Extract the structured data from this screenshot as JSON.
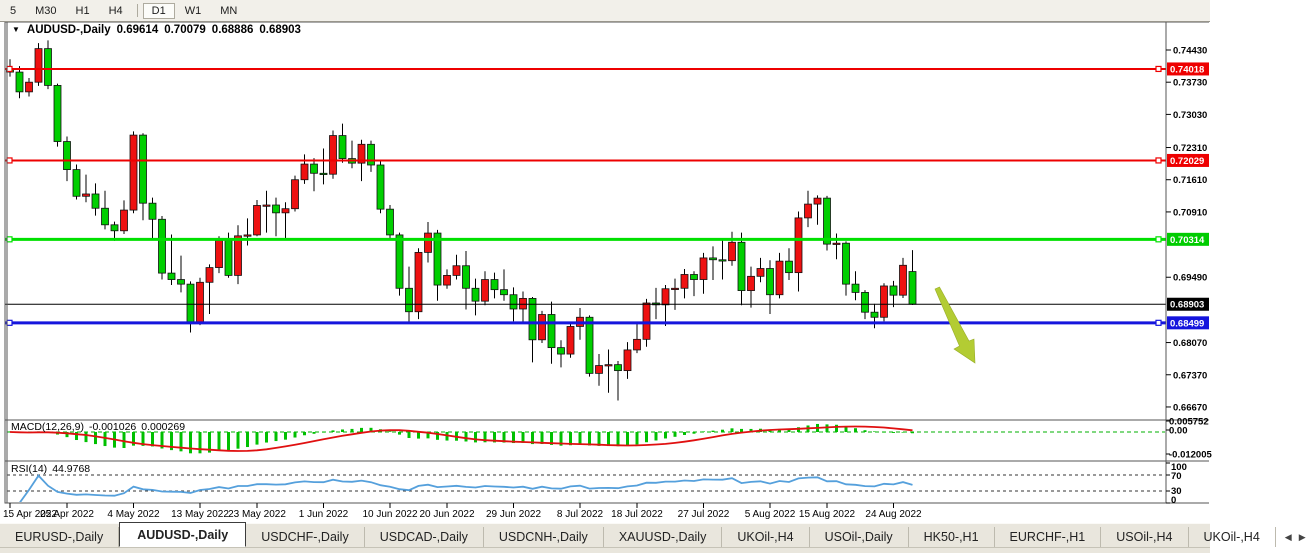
{
  "app": {
    "toolbar": {
      "timeframe_groups": [
        {
          "items": [
            {
              "label": "5",
              "active": false
            },
            {
              "label": "M30",
              "active": false
            },
            {
              "label": "H1",
              "active": false
            },
            {
              "label": "H4",
              "active": false
            }
          ]
        },
        {
          "items": [
            {
              "label": "D1",
              "active": true
            },
            {
              "label": "W1",
              "active": false
            },
            {
              "label": "MN",
              "active": false
            }
          ]
        }
      ]
    },
    "chart": {
      "title": {
        "dropdown_icon": "▼",
        "symbol": "AUDUSD-,Daily",
        "open": "0.69614",
        "high": "0.70079",
        "low": "0.68886",
        "close": "0.68903"
      }
    },
    "tabs": {
      "items": [
        {
          "label": "EURUSD-,Daily",
          "active": false
        },
        {
          "label": "AUDUSD-,Daily",
          "active": true
        },
        {
          "label": "USDCHF-,Daily",
          "active": false
        },
        {
          "label": "USDCAD-,Daily",
          "active": false
        },
        {
          "label": "USDCNH-,Daily",
          "active": false
        },
        {
          "label": "XAUUSD-,Daily",
          "active": false
        },
        {
          "label": "UKOil-,H4",
          "active": false
        },
        {
          "label": "USOil-,Daily",
          "active": false
        },
        {
          "label": "HK50-,H1",
          "active": false
        },
        {
          "label": "EURCHF-,H1",
          "active": false
        },
        {
          "label": "USOil-,H4",
          "active": false
        },
        {
          "label": "UKOil-,H4",
          "active": false
        }
      ],
      "scroll_left": "◀",
      "scroll_right": "▶"
    }
  },
  "price_axis": {
    "ticks": [
      "0.74430",
      "0.73730",
      "0.73030",
      "0.72310",
      "0.71610",
      "0.70910",
      "0.69490",
      "0.68070",
      "0.67370",
      "0.66670"
    ],
    "badges": [
      {
        "text": "0.74018",
        "color": "#ee0000",
        "text_color": "#ffffff"
      },
      {
        "text": "0.72029",
        "color": "#ee0000",
        "text_color": "#ffffff"
      },
      {
        "text": "0.70314",
        "color": "#00cc00",
        "text_color": "#ffffff"
      },
      {
        "text": "0.68903",
        "color": "#000000",
        "text_color": "#ffffff"
      },
      {
        "text": "0.68499",
        "color": "#1515dd",
        "text_color": "#ffffff"
      }
    ]
  },
  "chart_data": {
    "type": "candlestick",
    "symbol": "AUDUSD-,Daily",
    "timeframe": "Daily",
    "colors": {
      "up_candle": "#ee1111",
      "down_candle": "#00cf00",
      "wick": "#000000",
      "macd_hist": "#00c000",
      "macd_zero_line": "#00b000",
      "macd_signal": "#e01010",
      "rsi_line": "#55a0dc",
      "arrow": "#b3cc33"
    },
    "x_labels": [
      {
        "text": "15 Apr 2022",
        "index": 0
      },
      {
        "text": "25 Apr 2022",
        "index": 6
      },
      {
        "text": "4 May 2022",
        "index": 13
      },
      {
        "text": "13 May 2022",
        "index": 20
      },
      {
        "text": "23 May 2022",
        "index": 26
      },
      {
        "text": "1 Jun 2022",
        "index": 33
      },
      {
        "text": "10 Jun 2022",
        "index": 40
      },
      {
        "text": "20 Jun 2022",
        "index": 46
      },
      {
        "text": "29 Jun 2022",
        "index": 53
      },
      {
        "text": "8 Jul 2022",
        "index": 60
      },
      {
        "text": "18 Jul 2022",
        "index": 66
      },
      {
        "text": "27 Jul 2022",
        "index": 73
      },
      {
        "text": "5 Aug 2022",
        "index": 80
      },
      {
        "text": "15 Aug 2022",
        "index": 86
      },
      {
        "text": "24 Aug 2022",
        "index": 93
      }
    ],
    "hlines": [
      {
        "price": 0.74018,
        "color": "#ee0000",
        "width": 2,
        "markers": true
      },
      {
        "price": 0.72029,
        "color": "#ee0000",
        "width": 2,
        "markers": true
      },
      {
        "price": 0.70314,
        "color": "#00e000",
        "width": 3,
        "markers": true
      },
      {
        "price": 0.68903,
        "color": "#000000",
        "width": 1,
        "markers": false
      },
      {
        "price": 0.68499,
        "color": "#1515dd",
        "width": 3,
        "markers": true
      }
    ],
    "indicators": {
      "macd": {
        "name": "MACD(12,26,9)",
        "value_main": "-0.001026",
        "value_signal": "0.000269",
        "axis_labels": [
          "0.005752",
          "0.00",
          "-0.012005"
        ],
        "params": {
          "fast": 12,
          "slow": 26,
          "signal": 9
        }
      },
      "rsi": {
        "name": "RSI(14)",
        "value": "44.9768",
        "axis_labels": [
          "100",
          "70",
          "30",
          "0"
        ],
        "levels": [
          70,
          30
        ],
        "period": 14
      }
    },
    "annotations": [
      {
        "type": "arrow",
        "direction": "down-right",
        "color": "#b3cc33",
        "from_price": 0.6937,
        "to_price": 0.6776
      }
    ],
    "candle_format": "date,open,high,low,close",
    "candles": [
      [
        "2022.04.15",
        0.74,
        0.7423,
        0.7385,
        0.7395
      ],
      [
        "2022.04.18",
        0.7395,
        0.7408,
        0.7338,
        0.7352
      ],
      [
        "2022.04.19",
        0.7352,
        0.7382,
        0.7342,
        0.7373
      ],
      [
        "2022.04.20",
        0.7373,
        0.7458,
        0.7365,
        0.7446
      ],
      [
        "2022.04.21",
        0.7446,
        0.7464,
        0.7358,
        0.7366
      ],
      [
        "2022.04.22",
        0.7366,
        0.737,
        0.7233,
        0.7244
      ],
      [
        "2022.04.25",
        0.7244,
        0.7255,
        0.7158,
        0.7183
      ],
      [
        "2022.04.26",
        0.7183,
        0.7194,
        0.7118,
        0.7125
      ],
      [
        "2022.04.27",
        0.7125,
        0.7172,
        0.7112,
        0.713
      ],
      [
        "2022.04.28",
        0.713,
        0.7153,
        0.7083,
        0.7099
      ],
      [
        "2022.04.29",
        0.7099,
        0.7137,
        0.7053,
        0.7063
      ],
      [
        "2022.05.02",
        0.7063,
        0.707,
        0.7028,
        0.705
      ],
      [
        "2022.05.03",
        0.705,
        0.7116,
        0.7043,
        0.7095
      ],
      [
        "2022.05.04",
        0.7095,
        0.7266,
        0.7088,
        0.7258
      ],
      [
        "2022.05.05",
        0.7258,
        0.7262,
        0.7073,
        0.711
      ],
      [
        "2022.05.06",
        0.711,
        0.7122,
        0.7029,
        0.7075
      ],
      [
        "2022.05.09",
        0.7075,
        0.7082,
        0.6944,
        0.6958
      ],
      [
        "2022.05.10",
        0.6958,
        0.7042,
        0.6932,
        0.6944
      ],
      [
        "2022.05.11",
        0.6944,
        0.6996,
        0.6916,
        0.6934
      ],
      [
        "2022.05.12",
        0.6934,
        0.694,
        0.6829,
        0.6852
      ],
      [
        "2022.05.13",
        0.6852,
        0.6948,
        0.6845,
        0.6938
      ],
      [
        "2022.05.16",
        0.6938,
        0.6977,
        0.6869,
        0.697
      ],
      [
        "2022.05.17",
        0.697,
        0.7038,
        0.6958,
        0.7029
      ],
      [
        "2022.05.18",
        0.7029,
        0.7046,
        0.6948,
        0.6953
      ],
      [
        "2022.05.19",
        0.6953,
        0.7062,
        0.6934,
        0.7039
      ],
      [
        "2022.05.20",
        0.7039,
        0.7077,
        0.7018,
        0.7041
      ],
      [
        "2022.05.23",
        0.7041,
        0.7117,
        0.7038,
        0.7105
      ],
      [
        "2022.05.24",
        0.7105,
        0.7137,
        0.7046,
        0.7106
      ],
      [
        "2022.05.25",
        0.7106,
        0.7122,
        0.7038,
        0.7089
      ],
      [
        "2022.05.26",
        0.7089,
        0.7112,
        0.7033,
        0.7098
      ],
      [
        "2022.05.27",
        0.7098,
        0.717,
        0.7092,
        0.7161
      ],
      [
        "2022.05.30",
        0.7161,
        0.7216,
        0.7152,
        0.7195
      ],
      [
        "2022.05.31",
        0.7195,
        0.7208,
        0.7136,
        0.7175
      ],
      [
        "2022.06.01",
        0.7175,
        0.7229,
        0.7151,
        0.7173
      ],
      [
        "2022.06.02",
        0.7173,
        0.7268,
        0.7163,
        0.7257
      ],
      [
        "2022.06.03",
        0.7257,
        0.7283,
        0.7198,
        0.7207
      ],
      [
        "2022.06.06",
        0.7207,
        0.7246,
        0.7186,
        0.7197
      ],
      [
        "2022.06.07",
        0.7197,
        0.7248,
        0.7158,
        0.7238
      ],
      [
        "2022.06.08",
        0.7238,
        0.7246,
        0.7178,
        0.7193
      ],
      [
        "2022.06.09",
        0.7193,
        0.7201,
        0.7088,
        0.7097
      ],
      [
        "2022.06.10",
        0.7097,
        0.7106,
        0.7033,
        0.7041
      ],
      [
        "2022.06.13",
        0.7041,
        0.7046,
        0.6909,
        0.6925
      ],
      [
        "2022.06.14",
        0.6925,
        0.6972,
        0.6849,
        0.6874
      ],
      [
        "2022.06.15",
        0.6874,
        0.7012,
        0.6858,
        0.7003
      ],
      [
        "2022.06.16",
        0.7003,
        0.7069,
        0.6981,
        0.7045
      ],
      [
        "2022.06.17",
        0.7045,
        0.7052,
        0.6898,
        0.6932
      ],
      [
        "2022.06.20",
        0.6932,
        0.6966,
        0.6924,
        0.6953
      ],
      [
        "2022.06.21",
        0.6953,
        0.6998,
        0.6944,
        0.6974
      ],
      [
        "2022.06.22",
        0.6974,
        0.7006,
        0.6879,
        0.6925
      ],
      [
        "2022.06.23",
        0.6925,
        0.6946,
        0.6866,
        0.6897
      ],
      [
        "2022.06.24",
        0.6897,
        0.6962,
        0.6888,
        0.6944
      ],
      [
        "2022.06.27",
        0.6944,
        0.6959,
        0.6903,
        0.6922
      ],
      [
        "2022.06.28",
        0.6922,
        0.6966,
        0.6898,
        0.6911
      ],
      [
        "2022.06.29",
        0.6911,
        0.6927,
        0.6853,
        0.688
      ],
      [
        "2022.06.30",
        0.688,
        0.6918,
        0.6849,
        0.6903
      ],
      [
        "2022.07.01",
        0.6903,
        0.6906,
        0.6764,
        0.6813
      ],
      [
        "2022.07.04",
        0.6813,
        0.6876,
        0.6806,
        0.6868
      ],
      [
        "2022.07.05",
        0.6868,
        0.6896,
        0.6761,
        0.6796
      ],
      [
        "2022.07.06",
        0.6796,
        0.6812,
        0.6753,
        0.6782
      ],
      [
        "2022.07.07",
        0.6782,
        0.6852,
        0.6774,
        0.6842
      ],
      [
        "2022.07.08",
        0.6842,
        0.6882,
        0.6813,
        0.6862
      ],
      [
        "2022.07.11",
        0.6862,
        0.6866,
        0.6733,
        0.674
      ],
      [
        "2022.07.12",
        0.674,
        0.6782,
        0.6713,
        0.6757
      ],
      [
        "2022.07.13",
        0.6757,
        0.6792,
        0.6698,
        0.6759
      ],
      [
        "2022.07.14",
        0.6759,
        0.6767,
        0.6681,
        0.6746
      ],
      [
        "2022.07.15",
        0.6746,
        0.6808,
        0.6728,
        0.6791
      ],
      [
        "2022.07.18",
        0.6791,
        0.6852,
        0.6784,
        0.6814
      ],
      [
        "2022.07.19",
        0.6814,
        0.6902,
        0.6798,
        0.6893
      ],
      [
        "2022.07.20",
        0.6893,
        0.6926,
        0.6858,
        0.6889
      ],
      [
        "2022.07.21",
        0.6889,
        0.6932,
        0.6843,
        0.6924
      ],
      [
        "2022.07.22",
        0.6924,
        0.6946,
        0.6878,
        0.6925
      ],
      [
        "2022.07.25",
        0.6925,
        0.6967,
        0.6903,
        0.6955
      ],
      [
        "2022.07.26",
        0.6955,
        0.6962,
        0.6908,
        0.6944
      ],
      [
        "2022.07.27",
        0.6944,
        0.7002,
        0.6913,
        0.6991
      ],
      [
        "2022.07.28",
        0.6991,
        0.7016,
        0.6943,
        0.6987
      ],
      [
        "2022.07.29",
        0.6987,
        0.7033,
        0.6944,
        0.6985
      ],
      [
        "2022.08.01",
        0.6985,
        0.7048,
        0.6974,
        0.7025
      ],
      [
        "2022.08.02",
        0.7025,
        0.7046,
        0.6888,
        0.692
      ],
      [
        "2022.08.03",
        0.692,
        0.6972,
        0.6883,
        0.6951
      ],
      [
        "2022.08.04",
        0.6951,
        0.6991,
        0.6938,
        0.6968
      ],
      [
        "2022.08.05",
        0.6968,
        0.6986,
        0.6869,
        0.6911
      ],
      [
        "2022.08.08",
        0.6911,
        0.7002,
        0.6903,
        0.6984
      ],
      [
        "2022.08.09",
        0.6984,
        0.7012,
        0.6943,
        0.6959
      ],
      [
        "2022.08.10",
        0.6959,
        0.7092,
        0.6918,
        0.7078
      ],
      [
        "2022.08.11",
        0.7078,
        0.7137,
        0.7058,
        0.7108
      ],
      [
        "2022.08.12",
        0.7108,
        0.7127,
        0.7063,
        0.7121
      ],
      [
        "2022.08.15",
        0.7121,
        0.7126,
        0.7007,
        0.7021
      ],
      [
        "2022.08.16",
        0.7021,
        0.7044,
        0.6988,
        0.7023
      ],
      [
        "2022.08.17",
        0.7023,
        0.7027,
        0.6909,
        0.6934
      ],
      [
        "2022.08.18",
        0.6934,
        0.6962,
        0.6899,
        0.6916
      ],
      [
        "2022.08.19",
        0.6916,
        0.6921,
        0.6858,
        0.6873
      ],
      [
        "2022.08.22",
        0.6873,
        0.6891,
        0.6838,
        0.6862
      ],
      [
        "2022.08.23",
        0.6862,
        0.6936,
        0.6853,
        0.693
      ],
      [
        "2022.08.24",
        0.693,
        0.6941,
        0.6884,
        0.691
      ],
      [
        "2022.08.25",
        0.691,
        0.6991,
        0.6904,
        0.6975
      ],
      [
        "2022.08.26",
        0.69614,
        0.70079,
        0.68886,
        0.68903
      ]
    ]
  }
}
